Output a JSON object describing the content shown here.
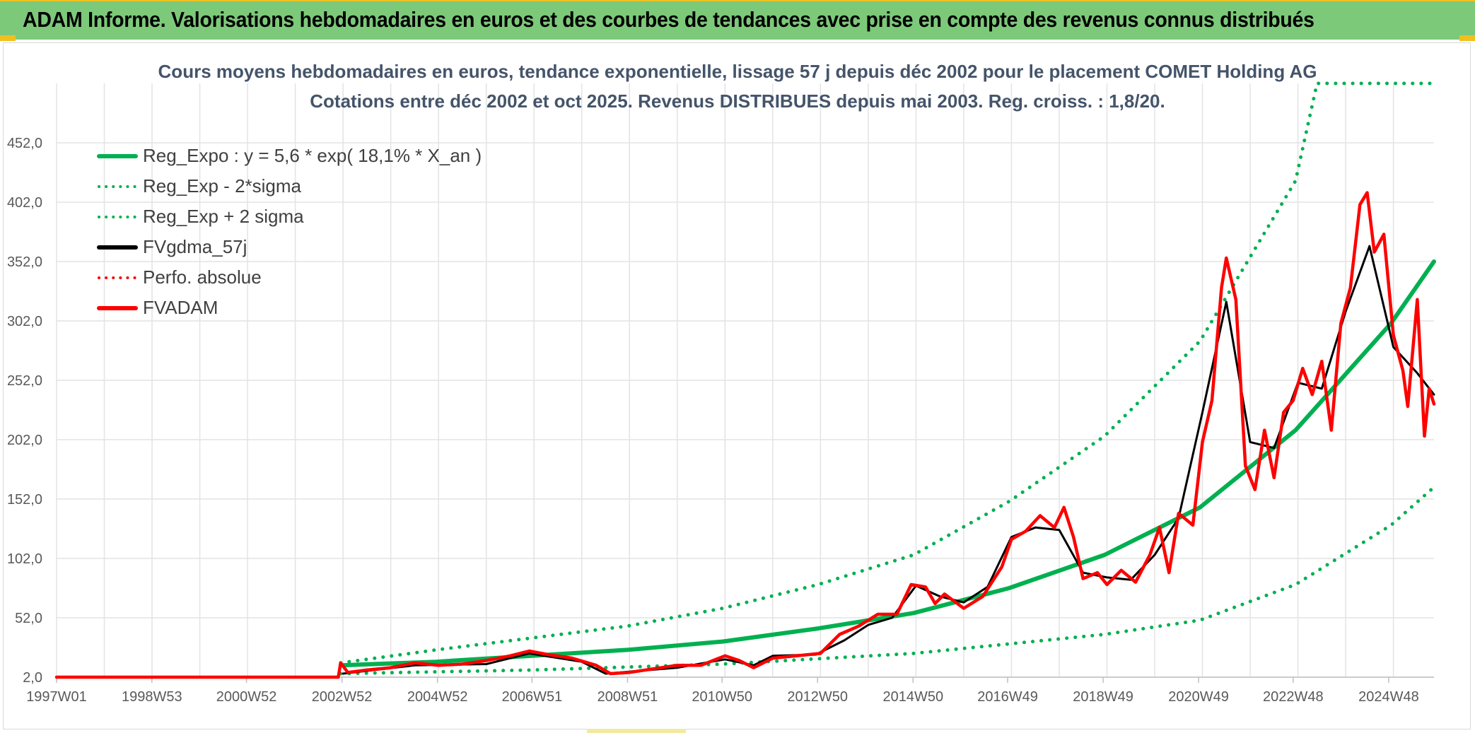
{
  "banner": {
    "title": "ADAM Informe. Valorisations hebdomadaires en euros et des courbes de tendances avec prise en compte des revenus connus distribués"
  },
  "chart_data": {
    "type": "line",
    "title": "Cours moyens hebdomadaires en euros, tendance exponentielle, lissage 57 j depuis déc 2002 pour le placement COMET Holding AG",
    "subtitle": "Cotations entre déc 2002 et oct 2025. Revenus DISTRIBUES depuis mai 2003. Reg. croiss. : 1,8/20.",
    "xlabel": "",
    "ylabel": "",
    "x_ticks": [
      "1997W01",
      "1998W53",
      "2000W52",
      "2002W52",
      "2004W52",
      "2006W51",
      "2008W51",
      "2010W50",
      "2012W50",
      "2014W50",
      "2016W49",
      "2018W49",
      "2020W49",
      "2022W48",
      "2024W48"
    ],
    "x_range": [
      1997.0,
      2025.85
    ],
    "y_ticks": [
      "2,0",
      "52,0",
      "102,0",
      "152,0",
      "202,0",
      "252,0",
      "302,0",
      "352,0",
      "402,0",
      "452,0"
    ],
    "ylim": [
      2,
      502
    ],
    "grid": true,
    "legend_position": "top-left",
    "series": [
      {
        "name": "Reg_Expo : y = 5,6 * exp( 18,1% *  X_an )",
        "color": "#00b050",
        "style": "solid",
        "points": [
          [
            2002.95,
            12
          ],
          [
            2004.95,
            15
          ],
          [
            2006.95,
            20
          ],
          [
            2008.95,
            25
          ],
          [
            2010.95,
            32
          ],
          [
            2012.95,
            43
          ],
          [
            2014.95,
            56
          ],
          [
            2016.95,
            77
          ],
          [
            2018.95,
            105
          ],
          [
            2020.95,
            145
          ],
          [
            2022.95,
            210
          ],
          [
            2024.95,
            300
          ],
          [
            2025.85,
            352
          ]
        ]
      },
      {
        "name": "Reg_Exp - 2*sigma",
        "color": "#00b050",
        "style": "dotted",
        "points": [
          [
            2002.95,
            5
          ],
          [
            2006.95,
            8
          ],
          [
            2010.95,
            13
          ],
          [
            2014.95,
            22
          ],
          [
            2018.95,
            38
          ],
          [
            2020.95,
            50
          ],
          [
            2022.95,
            80
          ],
          [
            2024.95,
            130
          ],
          [
            2025.85,
            162
          ]
        ]
      },
      {
        "name": "Reg_Exp + 2 sigma",
        "color": "#00b050",
        "style": "dotted",
        "points": [
          [
            2002.95,
            14
          ],
          [
            2004.95,
            25
          ],
          [
            2006.95,
            35
          ],
          [
            2008.95,
            45
          ],
          [
            2010.95,
            60
          ],
          [
            2012.95,
            80
          ],
          [
            2014.95,
            105
          ],
          [
            2016.95,
            150
          ],
          [
            2018.95,
            205
          ],
          [
            2020.95,
            285
          ],
          [
            2022.95,
            420
          ],
          [
            2023.4,
            502
          ],
          [
            2025.85,
            502
          ]
        ]
      },
      {
        "name": "FVgdma_57j",
        "color": "#000000",
        "style": "solid",
        "points": [
          [
            2003.0,
            5
          ],
          [
            2004.5,
            12
          ],
          [
            2006.0,
            13
          ],
          [
            2006.9,
            22
          ],
          [
            2008.0,
            15
          ],
          [
            2008.5,
            5
          ],
          [
            2010.0,
            10
          ],
          [
            2011.0,
            17
          ],
          [
            2011.6,
            12
          ],
          [
            2012.0,
            20
          ],
          [
            2012.9,
            21
          ],
          [
            2013.5,
            33
          ],
          [
            2014.0,
            46
          ],
          [
            2014.5,
            52
          ],
          [
            2015.0,
            79
          ],
          [
            2015.5,
            70
          ],
          [
            2016.0,
            65
          ],
          [
            2016.5,
            78
          ],
          [
            2017.0,
            120
          ],
          [
            2017.5,
            128
          ],
          [
            2018.0,
            126
          ],
          [
            2018.5,
            90
          ],
          [
            2019.0,
            86
          ],
          [
            2019.5,
            84
          ],
          [
            2020.0,
            105
          ],
          [
            2020.5,
            136
          ],
          [
            2021.0,
            225
          ],
          [
            2021.5,
            318
          ],
          [
            2022.0,
            200
          ],
          [
            2022.5,
            195
          ],
          [
            2023.0,
            250
          ],
          [
            2023.5,
            245
          ],
          [
            2024.0,
            310
          ],
          [
            2024.5,
            365
          ],
          [
            2025.0,
            280
          ],
          [
            2025.5,
            258
          ],
          [
            2025.85,
            240
          ]
        ]
      },
      {
        "name": "Perfo. absolue",
        "color": "#ff0000",
        "style": "dotted",
        "points": []
      },
      {
        "name": "FVADAM",
        "color": "#ff0000",
        "style": "solid",
        "points": [
          [
            1997.0,
            2
          ],
          [
            2002.9,
            2
          ],
          [
            2002.95,
            14
          ],
          [
            2003.1,
            6
          ],
          [
            2003.5,
            8
          ],
          [
            2004.0,
            10
          ],
          [
            2004.5,
            14
          ],
          [
            2005.0,
            12
          ],
          [
            2005.5,
            13
          ],
          [
            2006.0,
            16
          ],
          [
            2006.5,
            20
          ],
          [
            2006.9,
            24
          ],
          [
            2007.3,
            21
          ],
          [
            2007.8,
            18
          ],
          [
            2008.3,
            12
          ],
          [
            2008.6,
            5
          ],
          [
            2009.0,
            6
          ],
          [
            2009.5,
            9
          ],
          [
            2010.0,
            12
          ],
          [
            2010.5,
            12
          ],
          [
            2011.0,
            20
          ],
          [
            2011.3,
            16
          ],
          [
            2011.6,
            10
          ],
          [
            2012.0,
            18
          ],
          [
            2012.5,
            20
          ],
          [
            2013.0,
            22
          ],
          [
            2013.4,
            38
          ],
          [
            2013.8,
            45
          ],
          [
            2014.2,
            55
          ],
          [
            2014.6,
            55
          ],
          [
            2014.9,
            80
          ],
          [
            2015.2,
            78
          ],
          [
            2015.4,
            64
          ],
          [
            2015.6,
            72
          ],
          [
            2015.8,
            66
          ],
          [
            2016.0,
            60
          ],
          [
            2016.4,
            70
          ],
          [
            2016.8,
            95
          ],
          [
            2017.0,
            118
          ],
          [
            2017.3,
            125
          ],
          [
            2017.6,
            138
          ],
          [
            2017.9,
            128
          ],
          [
            2018.1,
            145
          ],
          [
            2018.3,
            120
          ],
          [
            2018.5,
            85
          ],
          [
            2018.8,
            90
          ],
          [
            2019.0,
            80
          ],
          [
            2019.3,
            92
          ],
          [
            2019.6,
            82
          ],
          [
            2019.9,
            105
          ],
          [
            2020.1,
            128
          ],
          [
            2020.3,
            90
          ],
          [
            2020.5,
            140
          ],
          [
            2020.8,
            130
          ],
          [
            2021.0,
            200
          ],
          [
            2021.2,
            235
          ],
          [
            2021.4,
            330
          ],
          [
            2021.5,
            355
          ],
          [
            2021.7,
            320
          ],
          [
            2021.9,
            180
          ],
          [
            2022.1,
            160
          ],
          [
            2022.3,
            210
          ],
          [
            2022.5,
            170
          ],
          [
            2022.7,
            225
          ],
          [
            2022.9,
            235
          ],
          [
            2023.1,
            262
          ],
          [
            2023.3,
            240
          ],
          [
            2023.5,
            268
          ],
          [
            2023.7,
            210
          ],
          [
            2023.9,
            300
          ],
          [
            2024.1,
            330
          ],
          [
            2024.3,
            400
          ],
          [
            2024.45,
            410
          ],
          [
            2024.6,
            360
          ],
          [
            2024.8,
            375
          ],
          [
            2025.0,
            290
          ],
          [
            2025.2,
            260
          ],
          [
            2025.3,
            230
          ],
          [
            2025.5,
            320
          ],
          [
            2025.65,
            205
          ],
          [
            2025.75,
            245
          ],
          [
            2025.85,
            232
          ]
        ]
      }
    ]
  }
}
